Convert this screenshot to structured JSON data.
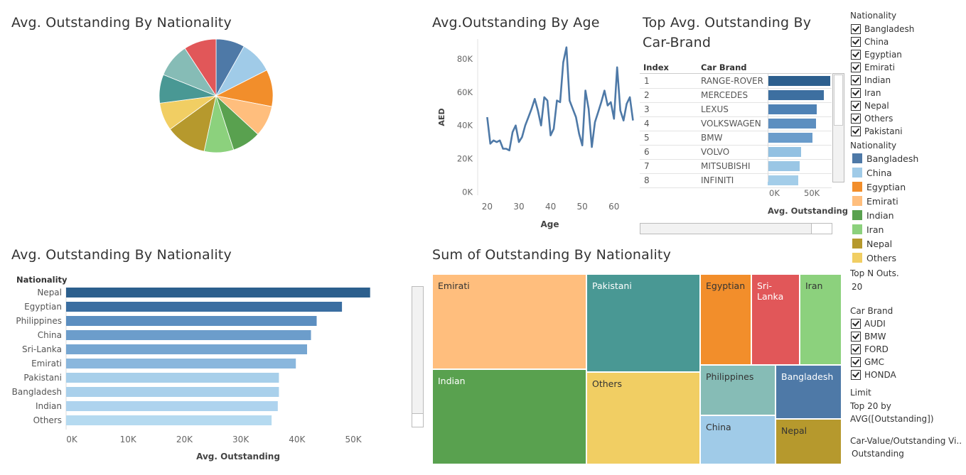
{
  "titles": {
    "pie": "Avg. Outstanding By Nationality",
    "line": "Avg.Outstanding By Age",
    "carbrand_line1": "Top Avg. Outstanding By",
    "carbrand_line2": "Car-Brand",
    "bar": "Avg. Outstanding By Nationality",
    "treemap": "Sum of Outstanding By Nationality"
  },
  "colors": {
    "Bangladesh": "#4e79a7",
    "China": "#a0cbe8",
    "Egyptian": "#f28e2b",
    "Emirati": "#ffbe7d",
    "Indian": "#59a14f",
    "Iran": "#8cd17d",
    "Nepal": "#b6992d",
    "Others": "#f1ce63",
    "Pakistani": "#499894",
    "Philippines": "#86bcb6",
    "Sri-Lanka": "#e15759"
  },
  "chart_data": [
    {
      "type": "pie",
      "title": "Avg. Outstanding By Nationality",
      "categories": [
        "Bangladesh",
        "China",
        "Egyptian",
        "Emirati",
        "Indian",
        "Iran",
        "Nepal",
        "Others",
        "Pakistani",
        "Philippines",
        "Sri-Lanka"
      ],
      "values": [
        38000,
        43500,
        49000,
        41000,
        38000,
        39000,
        54000,
        37000,
        38000,
        45000,
        43000
      ]
    },
    {
      "type": "line",
      "title": "Avg.Outstanding By Age",
      "xlabel": "Age",
      "ylabel": "AED",
      "xlim": [
        17,
        67
      ],
      "ylim": [
        -2000,
        92000
      ],
      "xticks": [
        "20",
        "30",
        "40",
        "50",
        "60"
      ],
      "yticks": [
        "80K",
        "60K",
        "40K",
        "20K",
        "0K"
      ],
      "x": [
        20,
        21,
        22,
        23,
        24,
        25,
        26,
        27,
        28,
        29,
        30,
        31,
        32,
        33,
        34,
        35,
        36,
        37,
        38,
        39,
        40,
        41,
        42,
        43,
        44,
        45,
        46,
        47,
        48,
        49,
        50,
        51,
        52,
        53,
        54,
        55,
        56,
        57,
        58,
        59,
        60,
        61,
        62,
        63,
        64,
        65,
        66
      ],
      "y": [
        45000,
        29000,
        31000,
        30000,
        31000,
        26000,
        26000,
        25000,
        36000,
        40000,
        30000,
        33000,
        40000,
        45000,
        50000,
        56000,
        49000,
        40000,
        57000,
        55000,
        34000,
        38000,
        55000,
        54000,
        78000,
        87000,
        55000,
        50000,
        45000,
        35000,
        28000,
        61000,
        50000,
        27000,
        42000,
        48000,
        54000,
        61000,
        52000,
        54000,
        44000,
        75000,
        49000,
        43000,
        53000,
        57000,
        43000
      ]
    },
    {
      "type": "bar",
      "title": "Top Avg. Outstanding By Car-Brand",
      "columns": [
        "Index",
        "Car Brand"
      ],
      "index": [
        "1",
        "2",
        "3",
        "4",
        "5",
        "6",
        "7",
        "8"
      ],
      "categories": [
        "RANGE-ROVER",
        "MERCEDES",
        "LEXUS",
        "VOLKSWAGEN",
        "BMW",
        "VOLVO",
        "MITSUBISHI",
        "INFINITI"
      ],
      "values": [
        78000,
        70000,
        61000,
        60000,
        56000,
        42000,
        40000,
        38000
      ],
      "xticks": [
        "0K",
        "50K"
      ],
      "xlabel": "Avg. Outstanding"
    },
    {
      "type": "bar",
      "title": "Avg. Outstanding By Nationality",
      "header": "Nationality",
      "categories": [
        "Nepal",
        "Egyptian",
        "Philippines",
        "China",
        "Sri-Lanka",
        "Emirati",
        "Pakistani",
        "Bangladesh",
        "Indian",
        "Others"
      ],
      "values": [
        54000,
        49000,
        44500,
        43500,
        42800,
        40800,
        37800,
        37800,
        37600,
        36500
      ],
      "xticks": [
        "0K",
        "10K",
        "20K",
        "30K",
        "40K",
        "50K"
      ],
      "xlim": [
        0,
        63000
      ],
      "xlabel": "Avg. Outstanding"
    },
    {
      "type": "treemap",
      "title": "Sum of Outstanding By Nationality",
      "categories": [
        "Emirati",
        "Indian",
        "Pakistani",
        "Others",
        "Egyptian",
        "Sri-Lanka",
        "Iran",
        "Philippines",
        "Bangladesh",
        "China",
        "Nepal"
      ]
    }
  ],
  "filters": {
    "nationality_title": "Nationality",
    "nationality_items": [
      "Bangladesh",
      "China",
      "Egyptian",
      "Emirati",
      "Indian",
      "Iran",
      "Nepal",
      "Others",
      "Pakistani"
    ],
    "legend_title": "Nationality",
    "legend_items": [
      "Bangladesh",
      "China",
      "Egyptian",
      "Emirati",
      "Indian",
      "Iran",
      "Nepal",
      "Others"
    ],
    "topn_label": "Top N Outs.",
    "topn_value": "20",
    "carbrand_title": "Car Brand",
    "carbrand_items": [
      "AUDI",
      "BMW",
      "FORD",
      "GMC",
      "HONDA"
    ],
    "limit_label": "Limit",
    "limit_value1": "Top 20 by",
    "limit_value2": "AVG([Outstanding])",
    "carvalue_label": "Car-Value/Outstanding Vi..",
    "carvalue_value": "Outstanding"
  }
}
